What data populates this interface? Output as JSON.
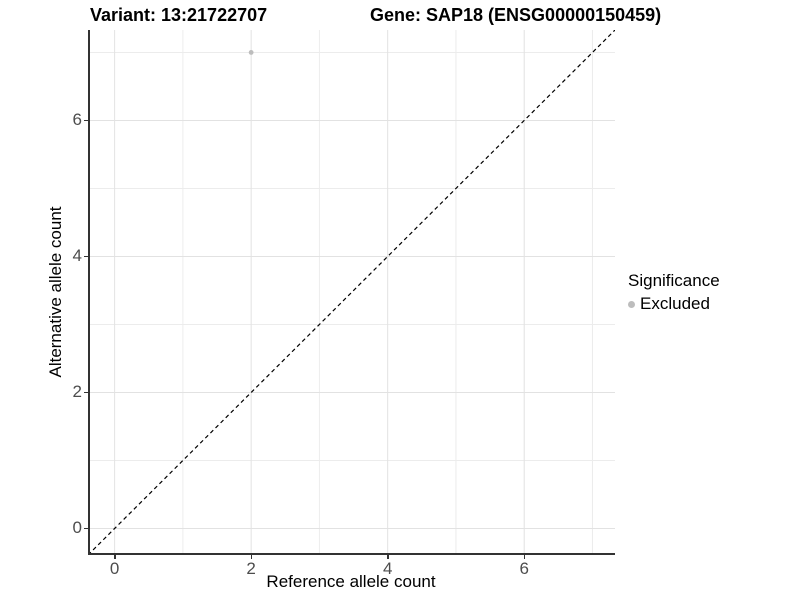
{
  "chart_data": {
    "type": "scatter",
    "title_left": "Variant: 13:21722707",
    "title_right": "Gene: SAP18 (ENSG00000150459)",
    "xlabel": "Reference allele count",
    "ylabel": "Alternative allele count",
    "xlim": [
      -0.39,
      7.33
    ],
    "ylim": [
      -0.39,
      7.33
    ],
    "x_ticks": [
      0,
      2,
      4,
      6
    ],
    "y_ticks": [
      0,
      2,
      4,
      6
    ],
    "minor_gridlines": [
      1,
      3,
      5,
      7
    ],
    "grid": true,
    "legend_position": "right",
    "reference_line": {
      "kind": "identity y=x",
      "linetype": "dashed",
      "color": "#000000"
    },
    "series": [
      {
        "name": "Excluded",
        "color": "#bdbdbd",
        "points": [
          {
            "x": 2,
            "y": 7
          }
        ],
        "point_radius": 2.4
      }
    ],
    "legend": {
      "title": "Significance",
      "items": [
        {
          "label": "Excluded",
          "color": "#bdbdbd"
        }
      ]
    }
  },
  "colors": {
    "background": "#ffffff",
    "axis_line": "#333333",
    "tick_label": "#4d4d4d",
    "grid_major": "#e2e2e2",
    "grid_minor": "#ececec"
  }
}
